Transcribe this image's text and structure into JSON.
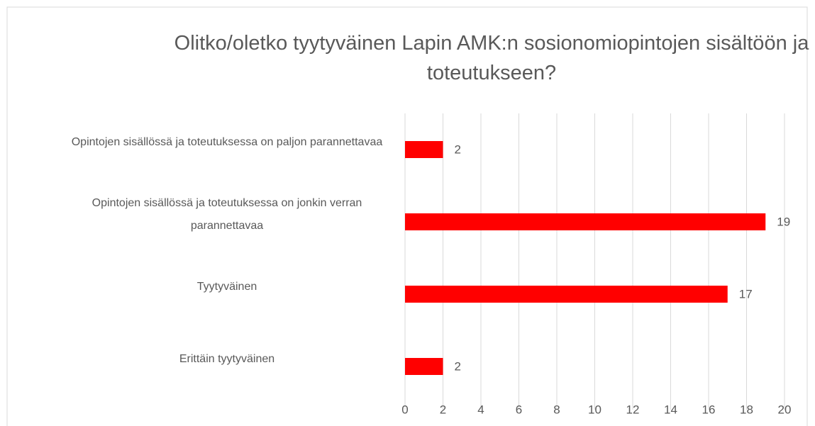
{
  "chart_data": {
    "type": "bar",
    "orientation": "horizontal",
    "title": "Olitko/oletko tyytyväinen Lapin AMK:n sosionomiopintojen sisältöön ja toteutukseen?",
    "categories": [
      "Opintojen sisällössä ja toteutuksessa on paljon parannettavaa",
      "Opintojen sisällössä ja toteutuksessa on jonkin verran parannettavaa",
      "Tyytyväinen",
      "Erittäin tyytyväinen"
    ],
    "values": [
      2,
      19,
      17,
      2
    ],
    "color": "#ff0000",
    "xlim": [
      0,
      20
    ],
    "xticks": [
      0,
      2,
      4,
      6,
      8,
      10,
      12,
      14,
      16,
      18,
      20
    ],
    "grid": true
  }
}
